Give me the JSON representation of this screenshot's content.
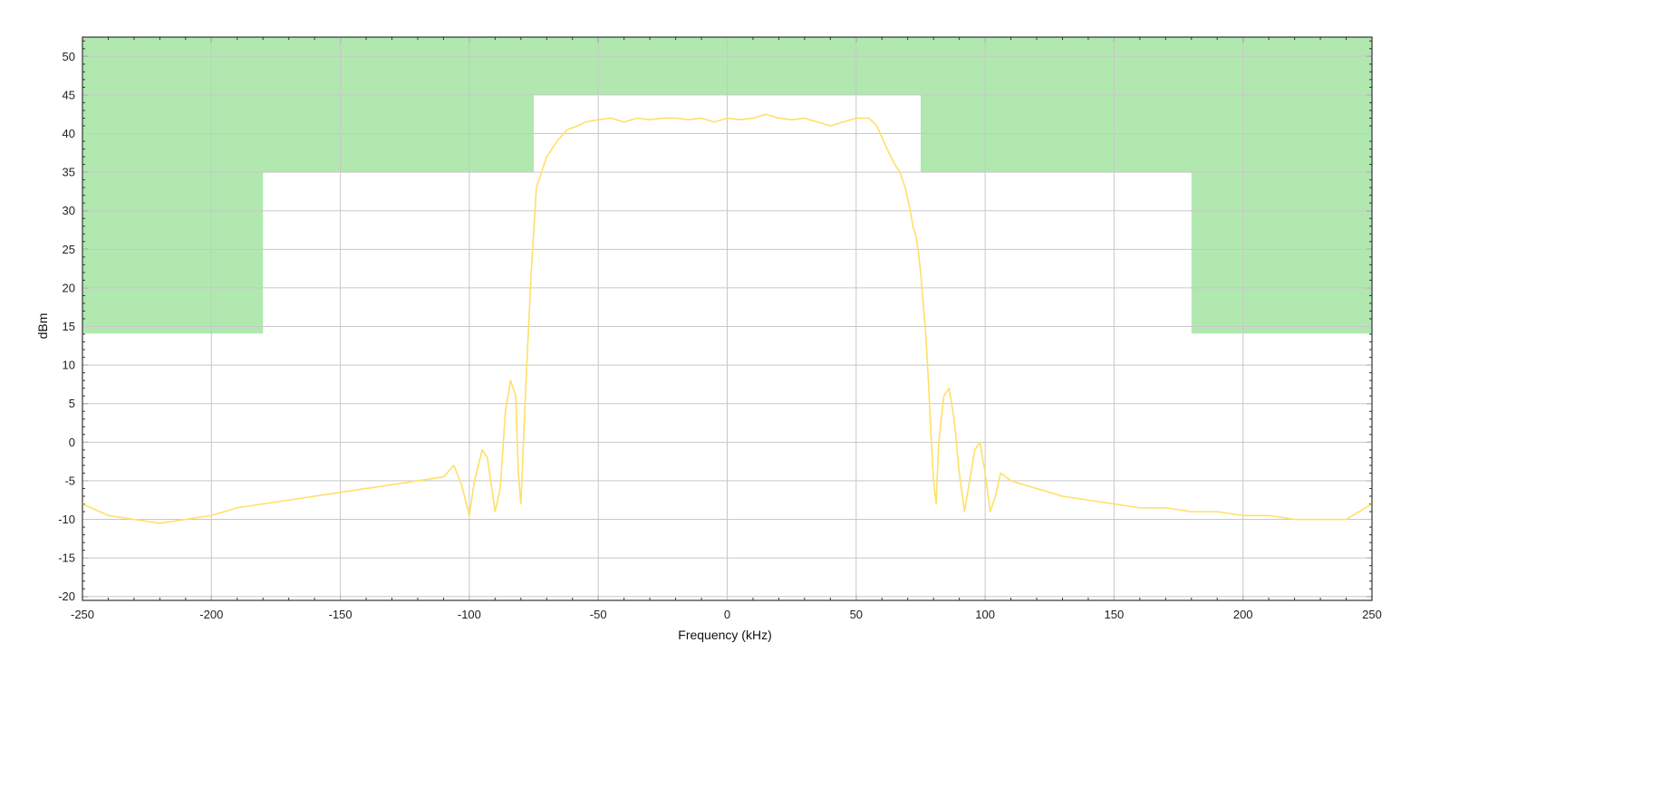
{
  "chart_data": {
    "type": "line",
    "xlabel": "Frequency (kHz)",
    "ylabel": "dBm",
    "xlim": [
      -250,
      250
    ],
    "ylim": [
      -20.5,
      52.5
    ],
    "xticks": [
      -250,
      -200,
      -150,
      -100,
      -50,
      0,
      50,
      100,
      150,
      200,
      250
    ],
    "yticks": [
      -20,
      -15,
      -10,
      -5,
      0,
      5,
      10,
      15,
      20,
      25,
      30,
      35,
      40,
      45,
      50
    ],
    "x_minor_step": 10,
    "y_minor_step": 1,
    "grid": true,
    "colors": {
      "mask": "#b0e8b0",
      "trace": "#ffe066",
      "grid": "#c8c8c8",
      "frame": "#333333"
    },
    "mask": {
      "name": "",
      "polygon": [
        [
          -250,
          52.5
        ],
        [
          250,
          52.5
        ],
        [
          250,
          14.1
        ],
        [
          180,
          14.1
        ],
        [
          180,
          35
        ],
        [
          75,
          35
        ],
        [
          75,
          45
        ],
        [
          -75,
          45
        ],
        [
          -75,
          35
        ],
        [
          -180,
          35
        ],
        [
          -180,
          14.1
        ],
        [
          -250,
          14.1
        ]
      ]
    },
    "series": [
      {
        "x": [
          -250,
          -240,
          -230,
          -220,
          -210,
          -200,
          -190,
          -180,
          -170,
          -160,
          -150,
          -140,
          -130,
          -120,
          -110,
          -106,
          -103,
          -100,
          -98,
          -95,
          -93,
          -90,
          -88,
          -86,
          -84,
          -82,
          -81,
          -80,
          -78,
          -76,
          -74,
          -72,
          -70,
          -66,
          -62,
          -58,
          -55,
          -50,
          -45,
          -40,
          -35,
          -30,
          -25,
          -20,
          -15,
          -10,
          -5,
          0,
          5,
          10,
          15,
          20,
          25,
          30,
          35,
          40,
          45,
          50,
          55,
          58,
          62,
          65,
          67,
          69,
          71,
          72,
          73,
          74,
          75,
          76,
          77,
          78,
          79,
          80,
          81,
          82,
          84,
          86,
          88,
          90,
          92,
          94,
          96,
          98,
          100,
          102,
          104,
          106,
          110,
          120,
          130,
          140,
          150,
          160,
          170,
          180,
          190,
          200,
          210,
          220,
          230,
          240,
          245,
          250
        ],
        "y": [
          -8,
          -9.5,
          -10,
          -10.5,
          -10,
          -9.5,
          -8.5,
          -8,
          -7.5,
          -7,
          -6.5,
          -6,
          -5.5,
          -5,
          -4.5,
          -3,
          -5.5,
          -9.5,
          -5,
          -1,
          -2,
          -9,
          -6,
          4,
          8,
          6,
          -4,
          -8,
          8,
          22,
          33,
          35,
          37,
          39,
          40.5,
          41,
          41.5,
          41.8,
          42,
          41.5,
          42,
          41.8,
          42,
          42,
          41.8,
          42,
          41.5,
          42,
          41.8,
          42,
          42.5,
          42,
          41.8,
          42,
          41.5,
          41,
          41.5,
          42,
          42,
          41,
          38,
          36,
          35,
          33,
          30,
          28,
          27,
          25,
          22,
          18,
          14,
          8,
          1,
          -5,
          -8,
          0,
          6,
          7,
          3,
          -4,
          -9,
          -5,
          -1,
          0,
          -4,
          -9,
          -7,
          -4,
          -5,
          -6,
          -7,
          -7.5,
          -8,
          -8.5,
          -8.5,
          -9,
          -9,
          -9.5,
          -9.5,
          -10,
          -10,
          -10,
          -9,
          -8
        ]
      }
    ]
  }
}
